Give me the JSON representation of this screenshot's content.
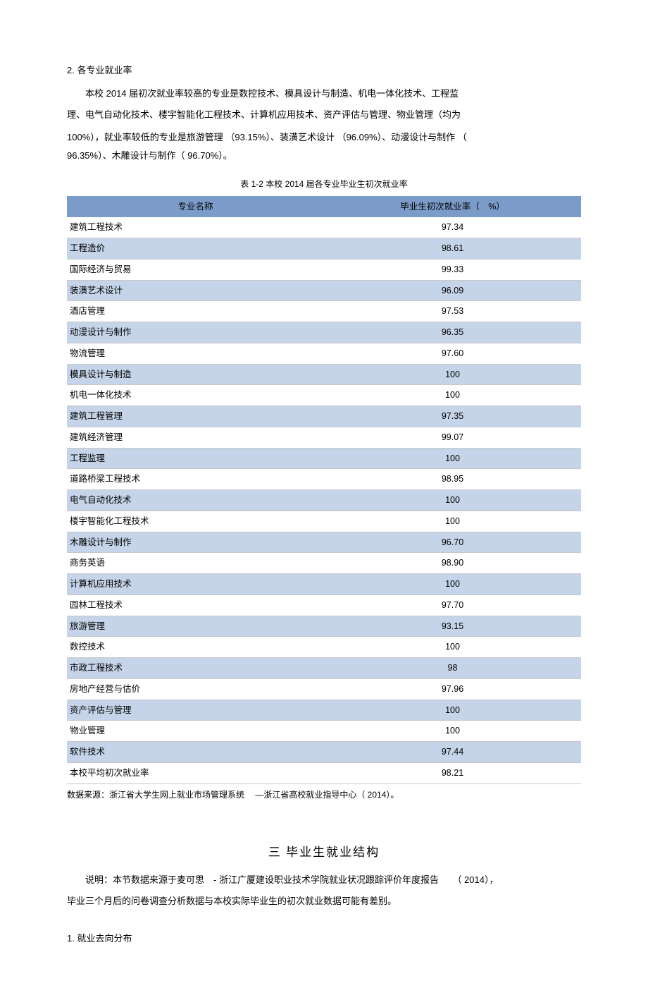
{
  "heading1": "2. 各专业就业率",
  "paragraph1_line1": "本校 2014 届初次就业率较高的专业是数控技术、模具设计与制造、机电一体化技术、工程监",
  "paragraph1_line2": "理、电气自动化技术、楼宇智能化工程技术、计算机应用技术、资产评估与管理、物业管理（均为",
  "paragraph2_line1": "100%），就业率较低的专业是旅游管理 （93.15%）、装潢艺术设计 （96.09%）、动漫设计与制作 （",
  "paragraph2_line2": "96.35%）、木雕设计与制作（ 96.70%）。",
  "table_caption": "表 1-2 本校 2014 届各专业毕业生初次就业率",
  "table": {
    "header_col1": "专业名称",
    "header_col2": "毕业生初次就业率（　%）",
    "rows": [
      {
        "name": "建筑工程技术",
        "rate": "97.34",
        "shaded": false
      },
      {
        "name": "工程造价",
        "rate": "98.61",
        "shaded": true
      },
      {
        "name": "国际经济与贸易",
        "rate": "99.33",
        "shaded": false
      },
      {
        "name": "装潢艺术设计",
        "rate": "96.09",
        "shaded": true
      },
      {
        "name": "酒店管理",
        "rate": "97.53",
        "shaded": false
      },
      {
        "name": "动漫设计与制作",
        "rate": "96.35",
        "shaded": true
      },
      {
        "name": "物流管理",
        "rate": "97.60",
        "shaded": false
      },
      {
        "name": "模具设计与制造",
        "rate": "100",
        "shaded": true
      },
      {
        "name": "机电一体化技术",
        "rate": "100",
        "shaded": false
      },
      {
        "name": "建筑工程管理",
        "rate": "97.35",
        "shaded": true
      },
      {
        "name": "建筑经济管理",
        "rate": "99.07",
        "shaded": false
      },
      {
        "name": "工程监理",
        "rate": "100",
        "shaded": true
      },
      {
        "name": "道路桥梁工程技术",
        "rate": "98.95",
        "shaded": false
      },
      {
        "name": "电气自动化技术",
        "rate": "100",
        "shaded": true
      },
      {
        "name": "楼宇智能化工程技术",
        "rate": "100",
        "shaded": false
      },
      {
        "name": "木雕设计与制作",
        "rate": "96.70",
        "shaded": true
      },
      {
        "name": "商务英语",
        "rate": "98.90",
        "shaded": false
      },
      {
        "name": "计算机应用技术",
        "rate": "100",
        "shaded": true
      },
      {
        "name": "园林工程技术",
        "rate": "97.70",
        "shaded": false
      },
      {
        "name": "旅游管理",
        "rate": "93.15",
        "shaded": true
      },
      {
        "name": "数控技术",
        "rate": "100",
        "shaded": false
      },
      {
        "name": "市政工程技术",
        "rate": "98",
        "shaded": true
      },
      {
        "name": "房地产经营与估价",
        "rate": "97.96",
        "shaded": false
      },
      {
        "name": "资产评估与管理",
        "rate": "100",
        "shaded": true
      },
      {
        "name": "物业管理",
        "rate": "100",
        "shaded": false
      },
      {
        "name": "软件技术",
        "rate": "97.44",
        "shaded": true
      },
      {
        "name": "本校平均初次就业率",
        "rate": "98.21",
        "shaded": false
      }
    ]
  },
  "data_source": "数据来源：浙江省大学生网上就业市场管理系统　 —浙江省高校就业指导中心（ 2014）。",
  "section_title": "三  毕业生就业结构",
  "note_line1": "说明：本节数据来源于麦可思　- 浙江广厦建设职业技术学院就业状况跟踪评价年度报告　　（ 2014），",
  "note_line2": "毕业三个月后的问卷调查分析数据与本校实际毕业生的初次就业数据可能有差别。",
  "heading2": "1. 就业去向分布",
  "colors": {
    "header_bg": "#7b9bc8",
    "shaded_row_bg": "#c5d4e8",
    "border": "#c8c8c8",
    "text": "#000000",
    "page_bg": "#ffffff"
  }
}
